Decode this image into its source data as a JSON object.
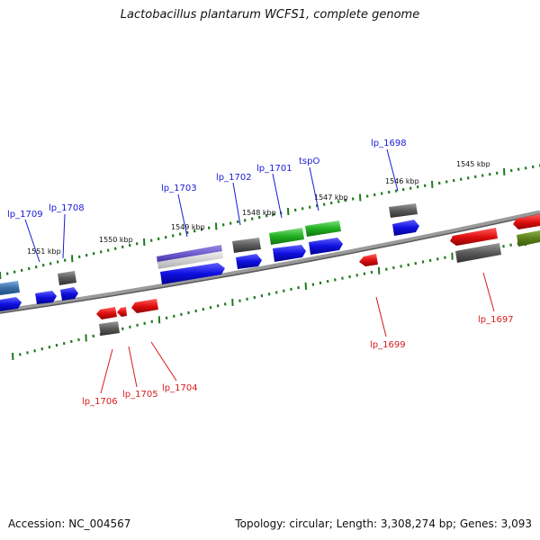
{
  "title": "Lactobacillus plantarum WCFS1, complete genome",
  "footer": {
    "accession": "Accession: NC_004567",
    "topology": "Topology: circular; Length: 3,308,274 bp; Genes: 3,093"
  },
  "kbp_labels": [
    "1545 kbp",
    "1546 kbp",
    "1547 kbp",
    "1548 kbp",
    "1549 kbp",
    "1550 kbp",
    "1551 kbp"
  ],
  "gene_labels_plus": [
    "lp_1698",
    "tspO",
    "lp_1701",
    "lp_1702",
    "lp_1703",
    "lp_1708",
    "lp_1709"
  ],
  "gene_labels_minus": [
    "lp_1697",
    "lp_1699",
    "lp_1704",
    "lp_1705",
    "lp_1706"
  ],
  "colors": {
    "backbone": "#7a7a7a",
    "plus_label": "#1a1ad8",
    "minus_label": "#d81a1a",
    "ticks": "#1f7a1f",
    "blue": "#1010e0",
    "red": "#e01010",
    "green": "#20b020",
    "gray": "#5a5a5a",
    "purple": "#6a5acd",
    "olive": "#5a7f1a",
    "steel": "#3a6ea5"
  }
}
